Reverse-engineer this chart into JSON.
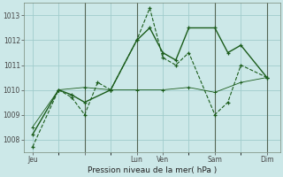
{
  "background_color": "#cce8e8",
  "grid_color": "#a0cccc",
  "line_color": "#1a5c1a",
  "title": "Pression niveau de la mer( hPa )",
  "ylim": [
    1007.5,
    1013.5
  ],
  "yticks": [
    1008,
    1009,
    1010,
    1011,
    1012,
    1013
  ],
  "xtick_positions": [
    0,
    24,
    48,
    60,
    84,
    108
  ],
  "xtick_labels": [
    "Jeu",
    "",
    "Lun",
    "Ven",
    "Sam",
    "Dim"
  ],
  "vline_positions": [
    24,
    48,
    84,
    108
  ],
  "series1_x": [
    0,
    12,
    18,
    24,
    30,
    36,
    48,
    54,
    60,
    66,
    72,
    84,
    90,
    96,
    108
  ],
  "series1_y": [
    1007.7,
    1010.0,
    1009.7,
    1009.0,
    1010.3,
    1010.0,
    1012.0,
    1013.3,
    1011.3,
    1011.0,
    1011.5,
    1009.0,
    1009.5,
    1011.0,
    1010.5
  ],
  "series2_x": [
    0,
    12,
    18,
    24,
    36,
    48,
    54,
    60,
    66,
    72,
    84,
    90,
    96,
    108
  ],
  "series2_y": [
    1008.2,
    1010.0,
    1009.8,
    1009.5,
    1010.0,
    1012.0,
    1012.5,
    1011.5,
    1011.2,
    1012.5,
    1012.5,
    1011.5,
    1011.8,
    1010.5
  ],
  "series3_x": [
    0,
    12,
    24,
    36,
    48,
    60,
    72,
    84,
    96,
    108
  ],
  "series3_y": [
    1008.5,
    1010.0,
    1010.1,
    1010.0,
    1010.0,
    1010.0,
    1010.1,
    1009.9,
    1010.3,
    1010.5
  ],
  "xlim": [
    -4,
    114
  ]
}
